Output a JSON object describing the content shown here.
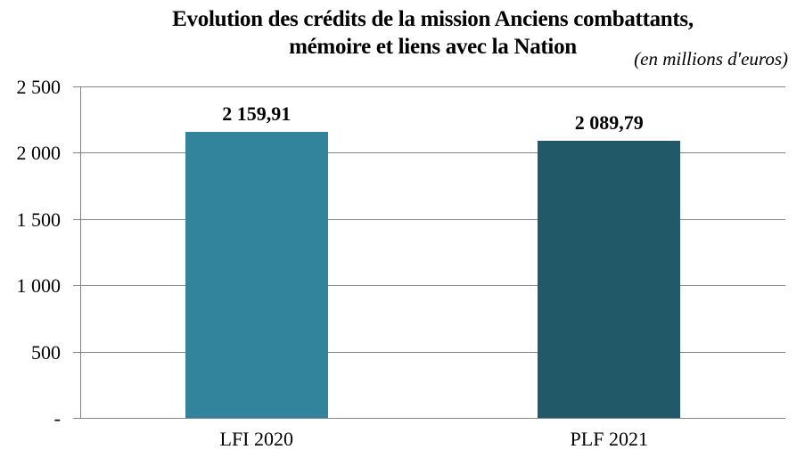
{
  "title": {
    "line1": "Evolution des crédits de la mission Anciens combattants,",
    "line2": "mémoire et liens avec la Nation"
  },
  "subtitle": "(en millions d'euros)",
  "chart_data": {
    "type": "bar",
    "title": "Evolution des crédits de la mission Anciens combattants, mémoire et liens avec la Nation",
    "subtitle": "(en millions d'euros)",
    "categories": [
      "LFI 2020",
      "PLF 2021"
    ],
    "values": [
      2159.91,
      2089.79
    ],
    "value_labels": [
      "2 159,91",
      "2 089,79"
    ],
    "bar_colors": [
      "#31849B",
      "#215968"
    ],
    "ylim": [
      0,
      2500
    ],
    "yticks": [
      0,
      500,
      1000,
      1500,
      2000,
      2500
    ],
    "ytick_labels": [
      "-",
      "500",
      "1 000",
      "1 500",
      "2 000",
      "2 500"
    ],
    "grid": true,
    "gridline_color": "#858585",
    "axis_color": "#858585",
    "text_color": "#000000",
    "legend_position": "none"
  }
}
